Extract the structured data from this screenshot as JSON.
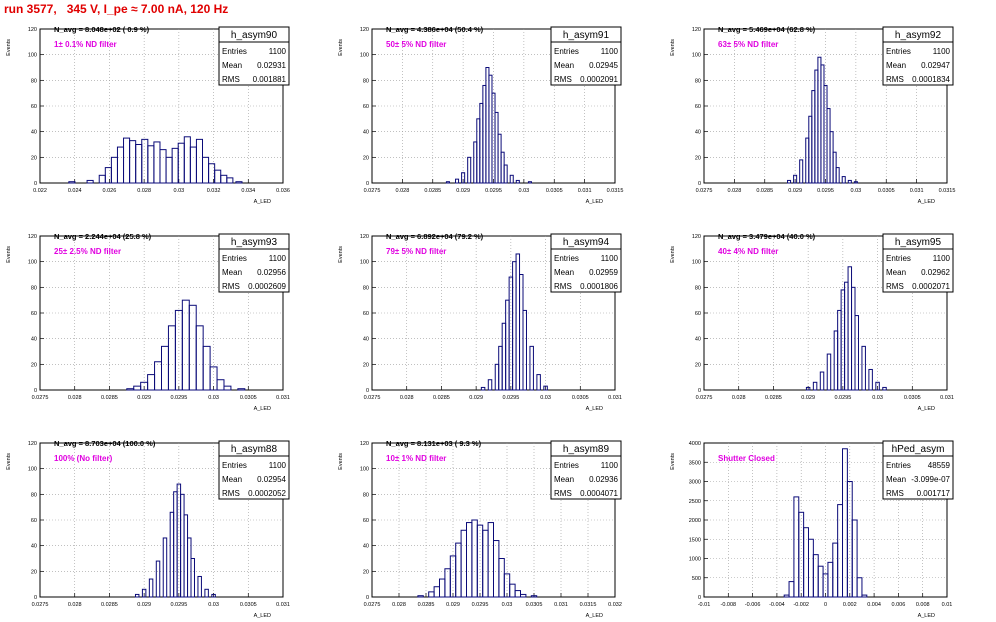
{
  "page": {
    "title": "run 3577,   345 V, I_pe ≈ 7.00 nA, 120 Hz"
  },
  "colors": {
    "hist": "#0a0a78",
    "magenta": "#e000e0",
    "title_red": "#e00000",
    "grid": "#9a9a9a"
  },
  "chart_data": [
    {
      "type": "bar",
      "name": "h_asym90",
      "navg_text": "N_avg = 8.048e+02 ( 0.9 %)",
      "filter_text": "1± 0.1% ND filter",
      "stats": {
        "entries_label": "Entries",
        "entries": "1100",
        "mean_label": "Mean",
        "mean": "0.02931",
        "rms_label": "RMS",
        "rms": "0.001881"
      },
      "xlabel": "A_LED",
      "ylabel": "Events",
      "xlim": [
        0.0215,
        0.0375
      ],
      "ylim": [
        0,
        120
      ],
      "xticks": [
        "0.022",
        "0.024",
        "0.026",
        "0.028",
        "0.03",
        "0.032",
        "0.034",
        "0.036"
      ],
      "yticks": [
        "0",
        "20",
        "40",
        "60",
        "80",
        "100",
        "120"
      ],
      "x": [
        0.0236,
        0.0248,
        0.0256,
        0.026,
        0.0264,
        0.0268,
        0.0272,
        0.0276,
        0.028,
        0.0284,
        0.0288,
        0.0292,
        0.0296,
        0.03,
        0.0304,
        0.0308,
        0.0312,
        0.0316,
        0.032,
        0.0324,
        0.0328,
        0.0332,
        0.0336,
        0.034,
        0.0346
      ],
      "values": [
        1,
        2,
        6,
        12,
        20,
        28,
        35,
        33,
        30,
        34,
        29,
        32,
        26,
        20,
        27,
        31,
        36,
        28,
        34,
        20,
        15,
        10,
        6,
        4,
        1
      ]
    },
    {
      "type": "bar",
      "name": "h_asym91",
      "navg_text": "N_avg = 4.386e+04 (50.4 %)",
      "filter_text": "50± 5% ND filter",
      "stats": {
        "entries_label": "Entries",
        "entries": "1100",
        "mean_label": "Mean",
        "mean": "0.02945",
        "rms_label": "RMS",
        "rms": "0.0002091"
      },
      "xlabel": "A_LED",
      "ylabel": "Events",
      "xlim": [
        0.0275,
        0.0315
      ],
      "ylim": [
        0,
        120
      ],
      "xticks": [
        "0.0275",
        "0.028",
        "0.0285",
        "0.029",
        "0.0295",
        "0.03",
        "0.0305",
        "0.031",
        "0.0315"
      ],
      "yticks": [
        "0",
        "20",
        "40",
        "60",
        "80",
        "100",
        "120"
      ],
      "x": [
        0.02875,
        0.0289,
        0.029,
        0.0291,
        0.0292,
        0.02925,
        0.0293,
        0.02935,
        0.0294,
        0.02945,
        0.0295,
        0.02955,
        0.0296,
        0.02965,
        0.0297,
        0.0298,
        0.0299,
        0.0301
      ],
      "values": [
        1,
        3,
        8,
        20,
        32,
        50,
        62,
        76,
        90,
        84,
        70,
        55,
        38,
        24,
        14,
        6,
        2,
        1
      ]
    },
    {
      "type": "bar",
      "name": "h_asym92",
      "navg_text": "N_avg = 5.469e+04 (62.8 %)",
      "filter_text": "63± 5% ND filter",
      "stats": {
        "entries_label": "Entries",
        "entries": "1100",
        "mean_label": "Mean",
        "mean": "0.02947",
        "rms_label": "RMS",
        "rms": "0.0001834"
      },
      "xlabel": "A_LED",
      "ylabel": "Events",
      "xlim": [
        0.0275,
        0.0315
      ],
      "ylim": [
        0,
        120
      ],
      "xticks": [
        "0.0275",
        "0.028",
        "0.0285",
        "0.029",
        "0.0295",
        "0.03",
        "0.0305",
        "0.031",
        "0.0315"
      ],
      "yticks": [
        "0",
        "20",
        "40",
        "60",
        "80",
        "100",
        "120"
      ],
      "x": [
        0.0289,
        0.029,
        0.0291,
        0.0292,
        0.02925,
        0.0293,
        0.02935,
        0.0294,
        0.02945,
        0.0295,
        0.02955,
        0.0296,
        0.02965,
        0.0297,
        0.0298,
        0.0299,
        0.03
      ],
      "values": [
        2,
        6,
        18,
        35,
        52,
        72,
        88,
        98,
        92,
        76,
        58,
        40,
        24,
        12,
        5,
        2,
        1
      ]
    },
    {
      "type": "bar",
      "name": "h_asym93",
      "navg_text": "N_avg = 2.244e+04 (25.8 %)",
      "filter_text": "25± 2.5% ND filter",
      "stats": {
        "entries_label": "Entries",
        "entries": "1100",
        "mean_label": "Mean",
        "mean": "0.02956",
        "rms_label": "RMS",
        "rms": "0.0002609"
      },
      "xlabel": "A_LED",
      "ylabel": "Events",
      "xlim": [
        0.0275,
        0.031
      ],
      "ylim": [
        0,
        120
      ],
      "xticks": [
        "0.0275",
        "0.028",
        "0.0285",
        "0.029",
        "0.0295",
        "0.03",
        "0.0305",
        "0.031"
      ],
      "yticks": [
        "0",
        "20",
        "40",
        "60",
        "80",
        "100",
        "120"
      ],
      "x": [
        0.0288,
        0.0289,
        0.029,
        0.0291,
        0.0292,
        0.0293,
        0.0294,
        0.0295,
        0.0296,
        0.0297,
        0.0298,
        0.0299,
        0.03,
        0.0301,
        0.0302,
        0.0304
      ],
      "values": [
        1,
        3,
        6,
        12,
        22,
        34,
        50,
        62,
        70,
        66,
        50,
        34,
        18,
        8,
        3,
        1
      ]
    },
    {
      "type": "bar",
      "name": "h_asym94",
      "navg_text": "N_avg = 6.892e+04 (79.2 %)",
      "filter_text": "79± 5% ND filter",
      "stats": {
        "entries_label": "Entries",
        "entries": "1100",
        "mean_label": "Mean",
        "mean": "0.02959",
        "rms_label": "RMS",
        "rms": "0.0001806"
      },
      "xlabel": "A_LED",
      "ylabel": "Events",
      "xlim": [
        0.0275,
        0.031
      ],
      "ylim": [
        0,
        120
      ],
      "xticks": [
        "0.0275",
        "0.028",
        "0.0285",
        "0.029",
        "0.0295",
        "0.03",
        "0.0305",
        "0.031"
      ],
      "yticks": [
        "0",
        "20",
        "40",
        "60",
        "80",
        "100",
        "120"
      ],
      "x": [
        0.0291,
        0.0292,
        0.0293,
        0.02935,
        0.0294,
        0.02945,
        0.0295,
        0.02955,
        0.0296,
        0.02965,
        0.0297,
        0.0298,
        0.0299,
        0.03
      ],
      "values": [
        2,
        8,
        20,
        34,
        52,
        70,
        88,
        100,
        106,
        90,
        62,
        34,
        12,
        3
      ]
    },
    {
      "type": "bar",
      "name": "h_asym95",
      "navg_text": "N_avg = 3.479e+04 (40.0 %)",
      "filter_text": "40± 4% ND filter",
      "stats": {
        "entries_label": "Entries",
        "entries": "1100",
        "mean_label": "Mean",
        "mean": "0.02962",
        "rms_label": "RMS",
        "rms": "0.0002071"
      },
      "xlabel": "A_LED",
      "ylabel": "Events",
      "xlim": [
        0.0275,
        0.031
      ],
      "ylim": [
        0,
        120
      ],
      "xticks": [
        "0.0275",
        "0.028",
        "0.0285",
        "0.029",
        "0.0295",
        "0.03",
        "0.0305",
        "0.031"
      ],
      "yticks": [
        "0",
        "20",
        "40",
        "60",
        "80",
        "100",
        "120"
      ],
      "x": [
        0.029,
        0.0291,
        0.0292,
        0.0293,
        0.0294,
        0.02945,
        0.0295,
        0.02955,
        0.0296,
        0.02965,
        0.0297,
        0.0298,
        0.0299,
        0.03,
        0.0301
      ],
      "values": [
        2,
        6,
        14,
        28,
        46,
        62,
        78,
        84,
        96,
        80,
        58,
        34,
        16,
        6,
        2
      ]
    },
    {
      "type": "bar",
      "name": "h_asym88",
      "navg_text": "N_avg = 8.703e+04 (100.0 %)",
      "filter_text": "100% (No filter)",
      "stats": {
        "entries_label": "Entries",
        "entries": "1100",
        "mean_label": "Mean",
        "mean": "0.02954",
        "rms_label": "RMS",
        "rms": "0.0002052"
      },
      "xlabel": "A_LED",
      "ylabel": "Events",
      "xlim": [
        0.0275,
        0.031
      ],
      "ylim": [
        0,
        120
      ],
      "xticks": [
        "0.0275",
        "0.028",
        "0.0285",
        "0.029",
        "0.0295",
        "0.03",
        "0.0305",
        "0.031"
      ],
      "yticks": [
        "0",
        "20",
        "40",
        "60",
        "80",
        "100",
        "120"
      ],
      "x": [
        0.0289,
        0.029,
        0.0291,
        0.0292,
        0.0293,
        0.0294,
        0.02945,
        0.0295,
        0.02955,
        0.0296,
        0.02965,
        0.0297,
        0.0298,
        0.0299,
        0.03
      ],
      "values": [
        2,
        6,
        14,
        28,
        46,
        66,
        82,
        88,
        80,
        64,
        46,
        30,
        16,
        6,
        2
      ]
    },
    {
      "type": "bar",
      "name": "h_asym89",
      "navg_text": "N_avg = 8.131e+03 ( 9.3 %)",
      "filter_text": "10± 1% ND filter",
      "stats": {
        "entries_label": "Entries",
        "entries": "1100",
        "mean_label": "Mean",
        "mean": "0.02936",
        "rms_label": "RMS",
        "rms": "0.0004071"
      },
      "xlabel": "A_LED",
      "ylabel": "Events",
      "xlim": [
        0.0275,
        0.032
      ],
      "ylim": [
        0,
        120
      ],
      "xticks": [
        "0.0275",
        "0.028",
        "0.0285",
        "0.029",
        "0.0295",
        "0.03",
        "0.0305",
        "0.031",
        "0.0315",
        "0.032"
      ],
      "yticks": [
        "0",
        "20",
        "40",
        "60",
        "80",
        "100",
        "120"
      ],
      "x": [
        0.0284,
        0.0286,
        0.0287,
        0.0288,
        0.0289,
        0.029,
        0.0291,
        0.0292,
        0.0293,
        0.0294,
        0.0295,
        0.0296,
        0.0297,
        0.0298,
        0.0299,
        0.03,
        0.0301,
        0.0302,
        0.0303,
        0.0305
      ],
      "values": [
        1,
        4,
        8,
        14,
        22,
        32,
        42,
        52,
        58,
        60,
        56,
        52,
        58,
        44,
        30,
        18,
        10,
        5,
        2,
        1
      ]
    },
    {
      "type": "bar",
      "name": "hPed_asym",
      "navg_text": "",
      "filter_text": "Shutter Closed",
      "stats": {
        "entries_label": "Entries",
        "entries": "48559",
        "mean_label": "Mean",
        "mean": "-3.099e-07",
        "rms_label": "RMS",
        "rms": "0.001717"
      },
      "xlabel": "A_LED",
      "ylabel": "Events",
      "xlim": [
        -0.01,
        0.01
      ],
      "ylim": [
        0,
        4000
      ],
      "xticks": [
        "-0.01",
        "-0.008",
        "-0.006",
        "-0.004",
        "-0.002",
        "0",
        "0.002",
        "0.004",
        "0.006",
        "0.008",
        "0.01"
      ],
      "yticks": [
        "0",
        "500",
        "1000",
        "1500",
        "2000",
        "2500",
        "3000",
        "3500",
        "4000"
      ],
      "x": [
        -0.0032,
        -0.0028,
        -0.0024,
        -0.002,
        -0.0016,
        -0.0012,
        -0.0008,
        -0.0004,
        0,
        0.0004,
        0.0008,
        0.0012,
        0.0016,
        0.002,
        0.0024,
        0.0028,
        0.0032
      ],
      "values": [
        50,
        400,
        2600,
        2200,
        1800,
        1500,
        1100,
        800,
        600,
        900,
        1400,
        2400,
        3850,
        3000,
        2000,
        500,
        50
      ]
    }
  ]
}
